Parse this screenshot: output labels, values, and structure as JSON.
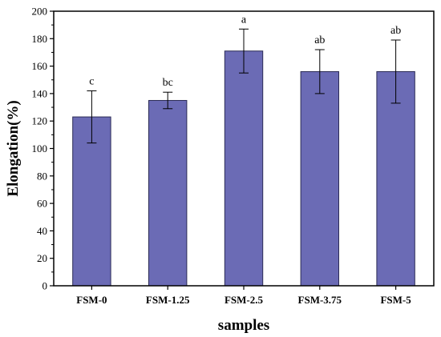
{
  "chart_data": {
    "type": "bar",
    "title": "",
    "xlabel": "samples",
    "ylabel": "Elongation(%)",
    "categories": [
      "FSM-0",
      "FSM-1.25",
      "FSM-2.5",
      "FSM-3.75",
      "FSM-5"
    ],
    "values": [
      123,
      135,
      171,
      156,
      156
    ],
    "error_low": [
      104,
      129,
      155,
      140,
      133
    ],
    "error_high": [
      142,
      141,
      187,
      172,
      179
    ],
    "significance_labels": [
      "c",
      "bc",
      "a",
      "ab",
      "ab"
    ],
    "ylim": [
      0,
      200
    ],
    "yticks": [
      "0",
      "20",
      "40",
      "60",
      "80",
      "100",
      "120",
      "140",
      "160",
      "180",
      "200"
    ],
    "bar_color": "#6b6bb5",
    "grid": false,
    "legend": false
  }
}
